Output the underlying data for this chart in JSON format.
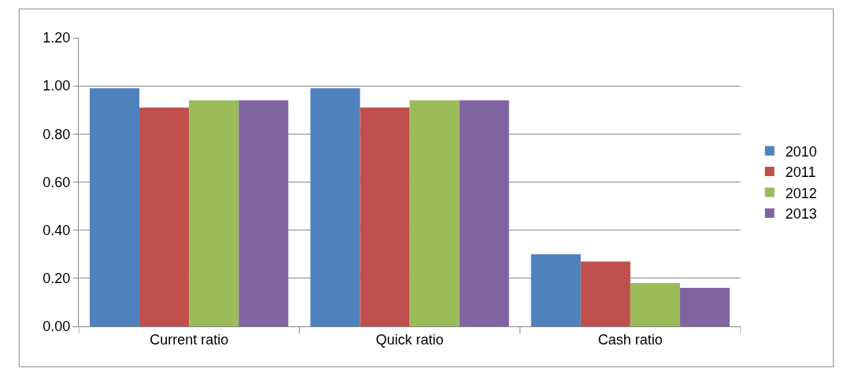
{
  "chart_data": {
    "type": "bar",
    "categories": [
      "Current ratio",
      "Quick ratio",
      "Cash ratio"
    ],
    "series": [
      {
        "name": "2010",
        "color": "#4f81bd",
        "values": [
          0.99,
          0.99,
          0.3
        ]
      },
      {
        "name": "2011",
        "color": "#c0504d",
        "values": [
          0.91,
          0.91,
          0.27
        ]
      },
      {
        "name": "2012",
        "color": "#9bbb59",
        "values": [
          0.94,
          0.94,
          0.18
        ]
      },
      {
        "name": "2013",
        "color": "#8064a2",
        "values": [
          0.94,
          0.94,
          0.16
        ]
      }
    ],
    "ylim": [
      0,
      1.2
    ],
    "yticks": [
      {
        "value": 0,
        "label": "0.00"
      },
      {
        "value": 0.2,
        "label": "0.20"
      },
      {
        "value": 0.4,
        "label": "0.40"
      },
      {
        "value": 0.6,
        "label": "0.60"
      },
      {
        "value": 0.8,
        "label": "0.80"
      },
      {
        "value": 1.0,
        "label": "1.00"
      },
      {
        "value": 1.2,
        "label": "1.20"
      }
    ],
    "grid": "y",
    "legend": "right"
  }
}
